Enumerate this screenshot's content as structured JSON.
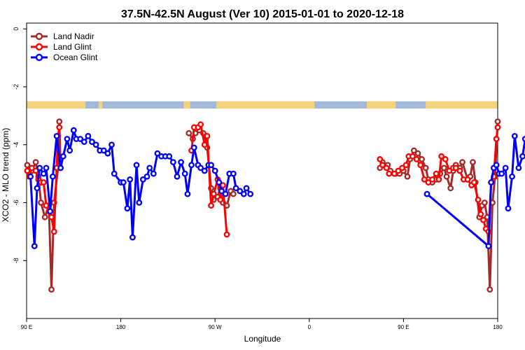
{
  "chart_data": {
    "type": "line",
    "title": "37.5N-42.5N August (Ver 10)   2015-01-01 to 2020-12-18",
    "xlabel": "Longitude",
    "ylabel": "XCO2 - MLO trend (ppm)",
    "xlim": [
      90,
      450
    ],
    "ylim": [
      -10,
      0.2
    ],
    "y_ticks": [
      0,
      -2,
      -4,
      -6,
      -8
    ],
    "y_tick_labels": [
      "0",
      "-2",
      "-4",
      "-6",
      "-8"
    ],
    "x_ticks": [
      90,
      180,
      270,
      360,
      450,
      540
    ],
    "x_tick_labels": [
      "90 E",
      "180",
      "90 W",
      "0",
      "90 E",
      "180"
    ],
    "x_ticks_data": [
      90,
      180,
      270,
      360,
      450,
      540
    ],
    "grid": false,
    "legend_position": "top-left",
    "map_strip": {
      "y_top": -2.5,
      "y_bottom": -2.75,
      "ocean_color": "#a3b9d9",
      "land_color": "#f5d37a",
      "land_ranges": [
        [
          90,
          135
        ],
        [
          145,
          147
        ],
        [
          145.5,
          148
        ],
        [
          210,
          215
        ],
        [
          235,
          310
        ],
        [
          350,
          360
        ],
        [
          360,
          372
        ],
        [
          395,
          485
        ],
        [
          495,
          497
        ],
        [
          505,
          510
        ]
      ]
    },
    "series": [
      {
        "name": "Land Nadir",
        "color": "#a52a2a",
        "points": [
          [
            90.5,
            -4.7
          ],
          [
            92,
            -5.0
          ],
          [
            94,
            -4.9
          ],
          [
            97,
            -4.6
          ],
          [
            99,
            -5.1
          ],
          [
            101,
            -6.0
          ],
          [
            104,
            -6.5
          ],
          [
            107,
            -6.1
          ],
          [
            109,
            -9.0
          ],
          [
            111,
            -6.0
          ],
          [
            114,
            -4.8
          ],
          [
            115,
            -3.2
          ],
          [
            116,
            -4.8
          ],
          [
            214,
            -3.6
          ],
          [
            217,
            -3.8
          ],
          [
            219,
            -3.6
          ],
          [
            222,
            -3.5
          ],
          [
            225,
            -3.6
          ],
          [
            228,
            -4.1
          ],
          [
            231,
            -5.5
          ],
          [
            233,
            -5.9
          ],
          [
            236,
            -5.8
          ],
          [
            238,
            -5.5
          ],
          [
            240,
            -6.0
          ],
          [
            243,
            -6.1
          ],
          [
            246,
            -5.6
          ],
          [
            248,
            -5.7
          ],
          [
            360,
            -4.8
          ],
          [
            362,
            -4.6
          ],
          [
            366,
            -4.7
          ],
          [
            368,
            -4.9
          ],
          [
            372,
            -5.0
          ],
          [
            375,
            -5.0
          ],
          [
            378,
            -4.9
          ],
          [
            381,
            -5.1
          ],
          [
            383,
            -4.5
          ],
          [
            386,
            -4.2
          ],
          [
            389,
            -4.3
          ],
          [
            392,
            -4.5
          ],
          [
            395,
            -4.8
          ],
          [
            397,
            -5.2
          ],
          [
            400,
            -5.3
          ],
          [
            403,
            -5.2
          ],
          [
            406,
            -5.0
          ],
          [
            409,
            -4.8
          ],
          [
            411,
            -5.1
          ],
          [
            414,
            -5.5
          ],
          [
            416,
            -4.9
          ],
          [
            418,
            -4.7
          ],
          [
            421,
            -4.8
          ],
          [
            423,
            -4.6
          ],
          [
            427,
            -5.2
          ],
          [
            429,
            -5.1
          ],
          [
            431,
            -4.6
          ],
          [
            433,
            -5.3
          ],
          [
            436,
            -6.5
          ],
          [
            438,
            -6.1
          ],
          [
            440,
            -6.0
          ],
          [
            442,
            -6.5
          ],
          [
            444,
            -9.0
          ],
          [
            446,
            -6.0
          ],
          [
            448,
            -5.1
          ],
          [
            450,
            -3.2
          ]
        ]
      },
      {
        "name": "Land Glint",
        "color": "#ff0000",
        "points": [
          [
            90.5,
            -4.9
          ],
          [
            92,
            -5.1
          ],
          [
            94,
            -4.8
          ],
          [
            97,
            -4.9
          ],
          [
            99,
            -5.2
          ],
          [
            101,
            -5.3
          ],
          [
            103,
            -5.3
          ],
          [
            105,
            -6.1
          ],
          [
            107,
            -6.3
          ],
          [
            109,
            -6.5
          ],
          [
            111,
            -7.0
          ],
          [
            113,
            -4.8
          ],
          [
            114,
            -3.7
          ],
          [
            115,
            -3.4
          ],
          [
            216,
            -4.2
          ],
          [
            218,
            -3.4
          ],
          [
            221,
            -3.4
          ],
          [
            223,
            -3.3
          ],
          [
            226,
            -4.0
          ],
          [
            228,
            -3.7
          ],
          [
            231,
            -6.1
          ],
          [
            233,
            -5.7
          ],
          [
            236,
            -5.2
          ],
          [
            238,
            -5.9
          ],
          [
            240,
            -5.4
          ],
          [
            243,
            -7.1
          ],
          [
            360,
            -4.5
          ],
          [
            362,
            -4.7
          ],
          [
            365,
            -4.8
          ],
          [
            367,
            -5.0
          ],
          [
            371,
            -5.0
          ],
          [
            374,
            -4.9
          ],
          [
            377,
            -4.8
          ],
          [
            380,
            -4.7
          ],
          [
            382,
            -4.4
          ],
          [
            385,
            -4.4
          ],
          [
            388,
            -4.5
          ],
          [
            391,
            -4.7
          ],
          [
            394,
            -5.2
          ],
          [
            397,
            -5.3
          ],
          [
            400,
            -5.2
          ],
          [
            403,
            -5.0
          ],
          [
            405,
            -5.2
          ],
          [
            407,
            -4.4
          ],
          [
            410,
            -4.5
          ],
          [
            413,
            -4.9
          ],
          [
            416,
            -4.8
          ],
          [
            418,
            -4.8
          ],
          [
            421,
            -4.9
          ],
          [
            424,
            -5.2
          ],
          [
            427,
            -5.2
          ],
          [
            430,
            -5.4
          ],
          [
            432,
            -5.3
          ],
          [
            435,
            -5.9
          ],
          [
            437,
            -6.4
          ],
          [
            439,
            -6.6
          ],
          [
            441,
            -6.9
          ],
          [
            443,
            -7.0
          ],
          [
            445,
            -5.3
          ],
          [
            447,
            -5.1
          ],
          [
            449,
            -3.8
          ],
          [
            450,
            -3.4
          ]
        ]
      },
      {
        "name": "Ocean Glint",
        "color": "#0000ff",
        "points": [
          [
            93,
            -5.1
          ],
          [
            96,
            -7.5
          ],
          [
            98,
            -5.5
          ],
          [
            100,
            -4.8
          ],
          [
            103,
            -5.0
          ],
          [
            105,
            -4.8
          ],
          [
            108,
            -6.3
          ],
          [
            110,
            -5.1
          ],
          [
            113,
            -3.7
          ],
          [
            116,
            -4.8
          ],
          [
            118,
            -4.4
          ],
          [
            121,
            -3.8
          ],
          [
            123,
            -4.2
          ],
          [
            126,
            -3.5
          ],
          [
            128,
            -3.8
          ],
          [
            131,
            -3.8
          ],
          [
            134,
            -3.9
          ],
          [
            137,
            -3.7
          ],
          [
            140,
            -3.9
          ],
          [
            143,
            -4.0
          ],
          [
            146,
            -4.2
          ],
          [
            149,
            -4.2
          ],
          [
            152,
            -4.3
          ],
          [
            155,
            -4.0
          ],
          [
            157,
            -5.0
          ],
          [
            162,
            -5.3
          ],
          [
            164,
            -5.3
          ],
          [
            167,
            -6.2
          ],
          [
            169,
            -5.2
          ],
          [
            171,
            -7.2
          ],
          [
            174,
            -4.7
          ],
          [
            176,
            -6.0
          ],
          [
            179,
            -5.2
          ],
          [
            182,
            -5.1
          ],
          [
            184,
            -4.8
          ],
          [
            187,
            -5.0
          ],
          [
            190,
            -4.3
          ],
          [
            193,
            -4.4
          ],
          [
            196,
            -4.4
          ],
          [
            199,
            -4.4
          ],
          [
            202,
            -4.6
          ],
          [
            205,
            -5.1
          ],
          [
            208,
            -4.6
          ],
          [
            211,
            -5.0
          ],
          [
            213,
            -5.7
          ],
          [
            216,
            -4.7
          ],
          [
            218,
            -4.1
          ],
          [
            221,
            -4.7
          ],
          [
            223,
            -4.8
          ],
          [
            226,
            -4.9
          ],
          [
            229,
            -4.7
          ],
          [
            231,
            -4.7
          ],
          [
            234,
            -4.9
          ],
          [
            237,
            -5.3
          ],
          [
            239,
            -5.6
          ],
          [
            242,
            -5.7
          ],
          [
            245,
            -5.0
          ],
          [
            248,
            -5.0
          ],
          [
            250,
            -5.5
          ],
          [
            253,
            -5.6
          ],
          [
            256,
            -5.7
          ],
          [
            258,
            -5.5
          ],
          [
            261,
            -5.7
          ],
          [
            396,
            -5.7
          ],
          [
            443,
            -7.5
          ],
          [
            445,
            -5.3
          ],
          [
            447,
            -4.8
          ],
          [
            449,
            -4.7
          ],
          [
            451,
            -5.0
          ],
          [
            453,
            -5.0
          ],
          [
            456,
            -4.8
          ],
          [
            458,
            -6.2
          ],
          [
            461,
            -5.1
          ],
          [
            463,
            -3.7
          ],
          [
            466,
            -4.8
          ],
          [
            469,
            -4.4
          ],
          [
            471,
            -3.8
          ],
          [
            474,
            -4.2
          ],
          [
            477,
            -3.5
          ]
        ]
      }
    ]
  }
}
